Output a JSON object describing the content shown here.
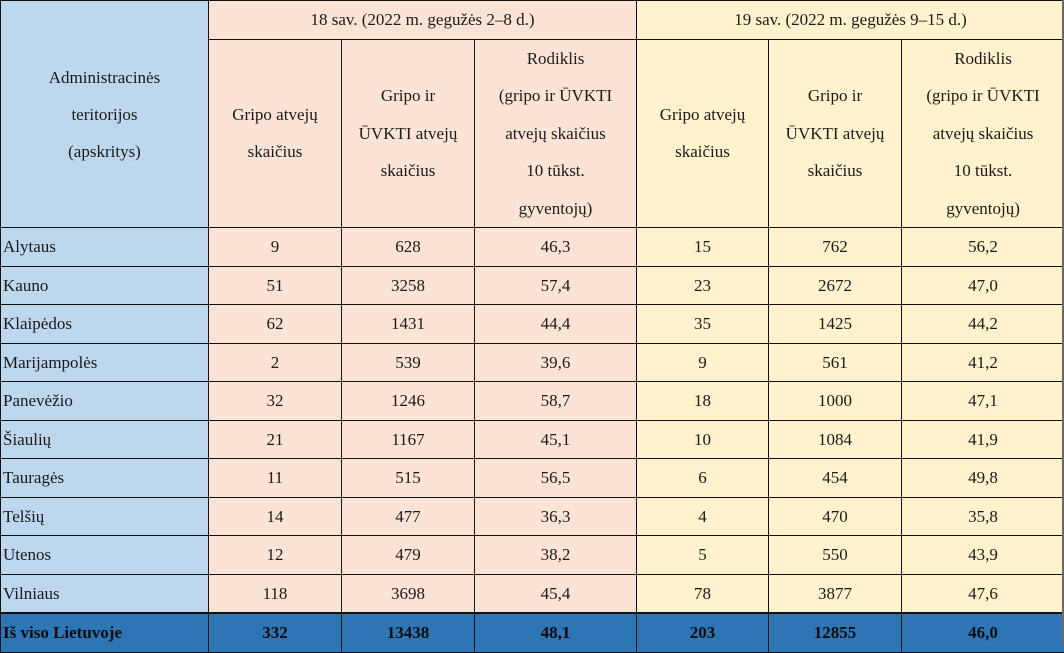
{
  "header": {
    "region_col": [
      "Administracinės",
      "teritorijos",
      "(apskritys)"
    ],
    "week18": "18 sav. (2022 m. gegužės  2–8 d.)",
    "week19": "19 sav. (2022 m. gegužės  9–15 d.)",
    "col_flu": [
      "Gripo atvejų",
      "skaičius"
    ],
    "col_flu_arvi": [
      "Gripo ir",
      "ŪVKTI atvejų",
      "skaičius"
    ],
    "col_rate": [
      "Rodiklis",
      "(gripo ir ŪVKTI",
      "atvejų skaičius",
      "10 tūkst.",
      "gyventojų)"
    ]
  },
  "rows": [
    {
      "name": "Alytaus",
      "w18_flu": "9",
      "w18_total": "628",
      "w18_rate": "46,3",
      "w19_flu": "15",
      "w19_total": "762",
      "w19_rate": "56,2"
    },
    {
      "name": "Kauno",
      "w18_flu": "51",
      "w18_total": "3258",
      "w18_rate": "57,4",
      "w19_flu": "23",
      "w19_total": "2672",
      "w19_rate": "47,0"
    },
    {
      "name": "Klaipėdos",
      "w18_flu": "62",
      "w18_total": "1431",
      "w18_rate": "44,4",
      "w19_flu": "35",
      "w19_total": "1425",
      "w19_rate": "44,2"
    },
    {
      "name": "Marijampolės",
      "w18_flu": "2",
      "w18_total": "539",
      "w18_rate": "39,6",
      "w19_flu": "9",
      "w19_total": "561",
      "w19_rate": "41,2"
    },
    {
      "name": "Panevėžio",
      "w18_flu": "32",
      "w18_total": "1246",
      "w18_rate": "58,7",
      "w19_flu": "18",
      "w19_total": "1000",
      "w19_rate": "47,1"
    },
    {
      "name": "Šiaulių",
      "w18_flu": "21",
      "w18_total": "1167",
      "w18_rate": "45,1",
      "w19_flu": "10",
      "w19_total": "1084",
      "w19_rate": "41,9"
    },
    {
      "name": "Tauragės",
      "w18_flu": "11",
      "w18_total": "515",
      "w18_rate": "56,5",
      "w19_flu": "6",
      "w19_total": "454",
      "w19_rate": "49,8"
    },
    {
      "name": "Telšių",
      "w18_flu": "14",
      "w18_total": "477",
      "w18_rate": "36,3",
      "w19_flu": "4",
      "w19_total": "470",
      "w19_rate": "35,8"
    },
    {
      "name": "Utenos",
      "w18_flu": "12",
      "w18_total": "479",
      "w18_rate": "38,2",
      "w19_flu": "5",
      "w19_total": "550",
      "w19_rate": "43,9"
    },
    {
      "name": "Vilniaus",
      "w18_flu": "118",
      "w18_total": "3698",
      "w18_rate": "45,4",
      "w19_flu": "78",
      "w19_total": "3877",
      "w19_rate": "47,6"
    }
  ],
  "total": {
    "name": "Iš viso Lietuvoje",
    "w18_flu": "332",
    "w18_total": "13438",
    "w18_rate": "48,1",
    "w19_flu": "203",
    "w19_total": "12855",
    "w19_rate": "46,0"
  },
  "colors": {
    "region_bg": "#bdd7ee",
    "week18_bg": "#fbe4d5",
    "week19_bg": "#fff2cc",
    "total_bg": "#2e75b6"
  }
}
